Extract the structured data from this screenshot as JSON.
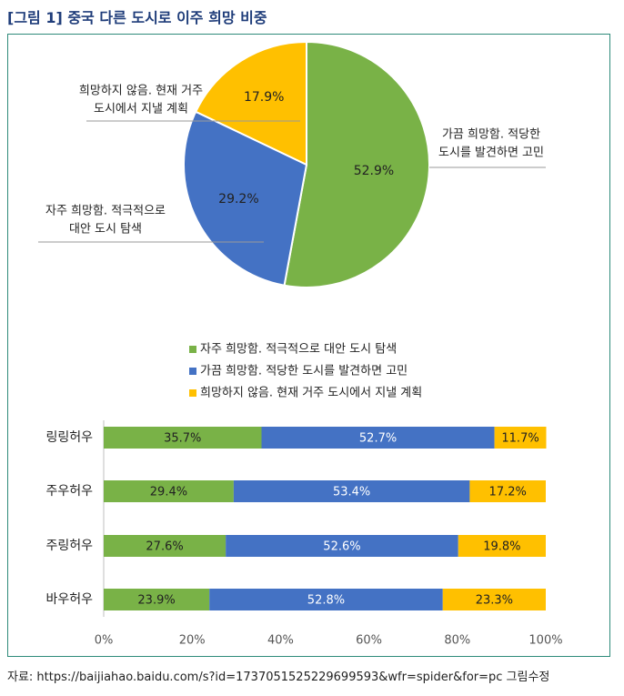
{
  "title": "[그림 1] 중국 다른 도시로 이주 희망 비중",
  "source": "자료: https://baijiahao.baidu.com/s?id=1737051525229699593&wfr=spider&for=pc 그림수정",
  "colors": {
    "green": "#79b247",
    "blue": "#4472c4",
    "yellow": "#ffc000"
  },
  "chart_data": [
    {
      "type": "pie",
      "slices": [
        {
          "label_lines": [
            "가끔 희망함. 적당한",
            "도시를 발견하면 고민"
          ],
          "value": 52.9,
          "value_label": "52.9%",
          "color": "#79b247"
        },
        {
          "label_lines": [
            "자주 희망함. 적극적으로",
            "대안 도시 탐색"
          ],
          "value": 29.2,
          "value_label": "29.2%",
          "color": "#4472c4"
        },
        {
          "label_lines": [
            "희망하지 않음. 현재 거주",
            "도시에서 지낼 계획"
          ],
          "value": 17.9,
          "value_label": "17.9%",
          "color": "#ffc000"
        }
      ]
    },
    {
      "type": "bar",
      "orientation": "horizontal",
      "stacked": true,
      "legend": [
        {
          "label": "자주 희망함. 적극적으로 대안 도시 탐색",
          "color": "#79b247"
        },
        {
          "label": "가끔 희망함. 적당한 도시를 발견하면 고민",
          "color": "#4472c4"
        },
        {
          "label": "희망하지 않음. 현재 거주 도시에서 지낼 계획",
          "color": "#ffc000"
        }
      ],
      "categories": [
        "링링허우",
        "주우허우",
        "주링허우",
        "바우허우"
      ],
      "series": [
        {
          "values": [
            35.7,
            29.4,
            27.6,
            23.9
          ],
          "value_labels": [
            "35.7%",
            "29.4%",
            "27.6%",
            "23.9%"
          ],
          "color": "#79b247"
        },
        {
          "values": [
            52.7,
            53.4,
            52.6,
            52.8
          ],
          "value_labels": [
            "52.7%",
            "53.4%",
            "52.6%",
            "52.8%"
          ],
          "color": "#4472c4"
        },
        {
          "values": [
            11.7,
            17.2,
            19.8,
            23.3
          ],
          "value_labels": [
            "11.7%",
            "17.2%",
            "19.8%",
            "23.3%"
          ],
          "color": "#ffc000"
        }
      ],
      "xlim": [
        0,
        100
      ],
      "x_ticks": [
        "0%",
        "20%",
        "40%",
        "60%",
        "80%",
        "100%"
      ]
    }
  ]
}
